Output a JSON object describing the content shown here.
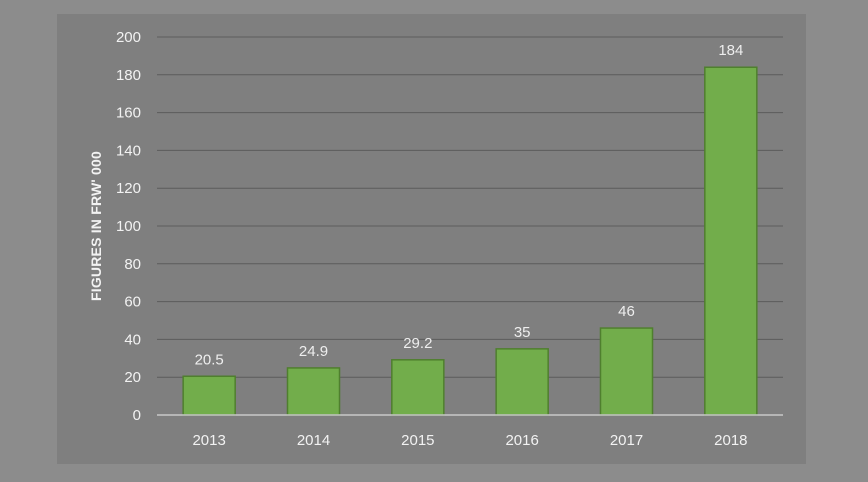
{
  "colors": {
    "page_background": "#8c8c8c",
    "plot_background": "#7f7f7f",
    "bar_fill": "#72ad4b",
    "bar_stroke": "#4f7f2e",
    "gridline": "#5c5c5c",
    "baseline": "#c8c8c8",
    "tick_text": "#f2f2f2",
    "label_text": "#eeeeee"
  },
  "chart_data": {
    "type": "bar",
    "title": "",
    "xlabel": "",
    "ylabel": "FIGURES IN FRW' 000",
    "categories": [
      "2013",
      "2014",
      "2015",
      "2016",
      "2017",
      "2018"
    ],
    "values": [
      20.5,
      24.9,
      29.2,
      35,
      46,
      184
    ],
    "data_labels": [
      "20.5",
      "24.9",
      "29.2",
      "35",
      "46",
      "184"
    ],
    "ylim": [
      0,
      200
    ],
    "yticks": [
      0,
      20,
      40,
      60,
      80,
      100,
      120,
      140,
      160,
      180,
      200
    ],
    "grid": true,
    "legend": "none"
  }
}
